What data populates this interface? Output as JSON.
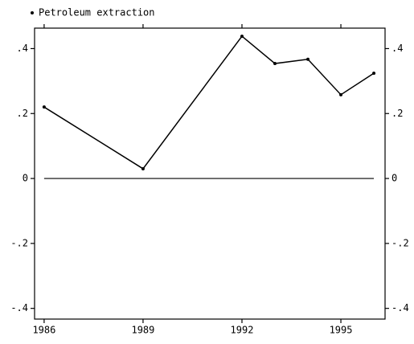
{
  "chart_data": {
    "type": "line",
    "x": [
      1986,
      1989,
      1992,
      1993,
      1994,
      1995,
      1996
    ],
    "series": [
      {
        "name": "Petroleum extraction",
        "color": "#000000",
        "values": [
          0.22,
          0.03,
          0.438,
          0.354,
          0.367,
          0.258,
          0.324
        ]
      }
    ],
    "xlim": [
      1985.71,
      1996.34
    ],
    "xticks": [
      1986,
      1989,
      1992,
      1995
    ],
    "ylim": [
      -0.433,
      0.463
    ],
    "yticks": [
      {
        "value": 0.4,
        "label": ".4"
      },
      {
        "value": 0.2,
        "label": ".2"
      },
      0,
      {
        "value": -0.2,
        "label": "-.2"
      },
      {
        "value": -0.4,
        "label": "-.4"
      }
    ],
    "grid": false,
    "legend": "top-left"
  }
}
